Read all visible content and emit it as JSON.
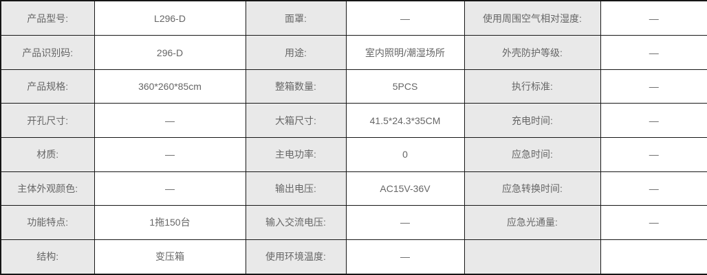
{
  "colors": {
    "border": "#161616",
    "label_cell_bg": "#e9e9e9",
    "value_cell_bg": "#ffffff",
    "text": "#666666"
  },
  "table": {
    "name": "product-spec-table",
    "empty_placeholder": "—",
    "rows": [
      [
        {
          "label": "产品型号:",
          "value": "L296-D"
        },
        {
          "label": "面罩:",
          "value": "—"
        },
        {
          "label": "使用周围空气相对湿度:",
          "value": "—"
        }
      ],
      [
        {
          "label": "产品识别码:",
          "value": "296-D"
        },
        {
          "label": "用途:",
          "value": "室内照明/潮湿场所"
        },
        {
          "label": "外壳防护等级:",
          "value": "—"
        }
      ],
      [
        {
          "label": "产品规格:",
          "value": "360*260*85cm"
        },
        {
          "label": "整箱数量:",
          "value": "5PCS"
        },
        {
          "label": "执行标准:",
          "value": "—"
        }
      ],
      [
        {
          "label": "开孔尺寸:",
          "value": "—"
        },
        {
          "label": "大箱尺寸:",
          "value": "41.5*24.3*35CM"
        },
        {
          "label": "充电时间:",
          "value": "—"
        }
      ],
      [
        {
          "label": "材质:",
          "value": "—"
        },
        {
          "label": "主电功率:",
          "value": "0"
        },
        {
          "label": "应急时间:",
          "value": "—"
        }
      ],
      [
        {
          "label": "主体外观颜色:",
          "value": "—"
        },
        {
          "label": "输出电压:",
          "value": "AC15V-36V"
        },
        {
          "label": "应急转换时间:",
          "value": "—"
        }
      ],
      [
        {
          "label": "功能特点:",
          "value": "1拖150台"
        },
        {
          "label": "输入交流电压:",
          "value": "—"
        },
        {
          "label": "应急光通量:",
          "value": "—"
        }
      ],
      [
        {
          "label": "结构:",
          "value": "变压箱"
        },
        {
          "label": "使用环境温度:",
          "value": "—"
        },
        {
          "label": "",
          "value": ""
        }
      ]
    ]
  }
}
